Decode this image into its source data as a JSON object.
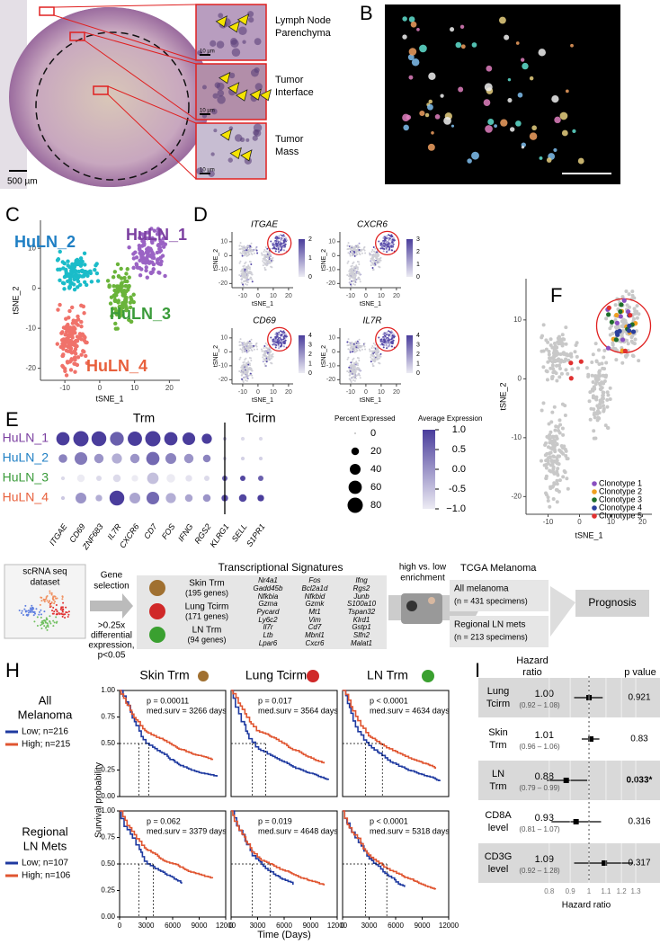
{
  "A": {
    "letter": "A",
    "insets": [
      [
        "Lymph Node",
        "Parenchyma"
      ],
      [
        "Tumor",
        "Interface"
      ],
      [
        "Tumor",
        "Mass"
      ]
    ],
    "scale_big": "500 µm",
    "scale_small": "10 µm"
  },
  "B": {
    "letter": "B"
  },
  "C": {
    "letter": "C",
    "clusters": [
      "HuLN_1",
      "HuLN_2",
      "HuLN_3",
      "HuLN_4"
    ],
    "label_colors": [
      "#7b3fa0",
      "#1f7fc4",
      "#3a9b3a",
      "#e8603c"
    ],
    "point_colors": [
      "#9a63c4",
      "#1bbcc9",
      "#6ab43a",
      "#f0726a"
    ],
    "xlabel": "tSNE_1",
    "ylabel": "tSNE_2",
    "xlim": [
      -17,
      23
    ],
    "ylim": [
      -23,
      17
    ],
    "xticks": [
      -10,
      0,
      10,
      20
    ],
    "yticks": [
      10,
      0,
      -10,
      -20
    ]
  },
  "D": {
    "letter": "D",
    "xlabel": "tSNE_1",
    "ylabel": "tSNE_2",
    "xlim": [
      -17,
      23
    ],
    "ylim": [
      -23,
      17
    ],
    "xticks": [
      -10,
      0,
      10,
      20
    ],
    "yticks": [
      10,
      0,
      -10,
      -20
    ],
    "genes": [
      {
        "name": "ITGAE",
        "scale": [
          2,
          1,
          0
        ]
      },
      {
        "name": "CXCR6",
        "scale": [
          3,
          2,
          1,
          0
        ]
      },
      {
        "name": "CD69",
        "scale": [
          4,
          3,
          2,
          1,
          0
        ]
      },
      {
        "name": "IL7R",
        "scale": [
          4,
          3,
          2,
          1,
          0
        ]
      }
    ]
  },
  "E": {
    "letter": "E",
    "rows": [
      "HuLN_1",
      "HuLN_2",
      "HuLN_3",
      "HuLN_4"
    ],
    "columns": [
      "ITGAE",
      "CD69",
      "ZNF683",
      "IL7R",
      "CXCR6",
      "CD7",
      "FOS",
      "IFNG",
      "RGS2",
      "KLRG1",
      "SELL",
      "S1PR1"
    ],
    "groups": [
      "Trm",
      "Tcirm"
    ],
    "percent": [
      [
        60,
        80,
        75,
        65,
        70,
        80,
        60,
        55,
        35,
        5,
        5,
        5
      ],
      [
        25,
        55,
        30,
        35,
        30,
        60,
        40,
        30,
        20,
        5,
        5,
        5
      ],
      [
        5,
        20,
        10,
        20,
        15,
        45,
        25,
        15,
        10,
        10,
        10,
        10
      ],
      [
        5,
        40,
        15,
        75,
        40,
        55,
        35,
        20,
        20,
        15,
        20,
        15
      ]
    ],
    "expression": [
      [
        1.2,
        1.2,
        1.3,
        0.6,
        1.3,
        1.1,
        1.2,
        1.1,
        1.0,
        -0.5,
        -0.8,
        -0.8
      ],
      [
        0.2,
        0.3,
        0.0,
        -0.3,
        0.0,
        0.5,
        0.2,
        0.0,
        0.2,
        -0.7,
        -0.7,
        -0.7
      ],
      [
        -0.8,
        -1,
        -0.8,
        -0.8,
        -1,
        -0.5,
        -1,
        -0.9,
        -0.8,
        0.6,
        0.9,
        0.6
      ],
      [
        -0.6,
        0.0,
        -0.3,
        1.3,
        -0.2,
        0.5,
        -0.3,
        -0.2,
        0.0,
        0.8,
        0.9,
        1.0
      ]
    ],
    "size_title": "Percent Expressed",
    "size_ticks": [
      0,
      20,
      40,
      60,
      80
    ],
    "color_title": "Average Expression",
    "color_ticks": [
      {
        "value": 1,
        "label": "1.0"
      },
      0.5,
      {
        "value": 0,
        "label": "0.0"
      },
      -0.5,
      {
        "value": -1,
        "label": "−1.0"
      }
    ],
    "color_low": "#ecebf3",
    "color_high": "#4a3d9c"
  },
  "F": {
    "letter": "F",
    "xlabel": "tSNE_1",
    "ylabel": "tSNE_2",
    "xlim": [
      -17,
      23
    ],
    "ylim": [
      -23,
      17
    ],
    "xticks": [
      -10,
      0,
      10,
      20
    ],
    "yticks": [
      10,
      0,
      -10,
      -20
    ],
    "clonotypes": [
      {
        "name": "Clonotype 1",
        "color": "#8a4fc0"
      },
      {
        "name": "Clonotype 2",
        "color": "#f0a020"
      },
      {
        "name": "Clonotype 3",
        "color": "#1d6e2a"
      },
      {
        "name": "Clonotype 4",
        "color": "#2a3f9c"
      },
      {
        "name": "Clonotype 5",
        "color": "#e03030"
      }
    ]
  },
  "G": {
    "letter": "G",
    "dataset": [
      "scRNA seq",
      "dataset"
    ],
    "selection": [
      "Gene",
      "selection"
    ],
    "criteria": [
      ">0.25x",
      "differential",
      "expression,",
      "p<0.05"
    ],
    "title": "Transcriptional Signatures",
    "signatures": [
      {
        "name": "Skin Trm",
        "count": "(195 genes)",
        "genes": [
          [
            "Nr4a1",
            "Gadd45b",
            "Nfkbia"
          ],
          [
            "Fos",
            "Bcl2a1d",
            "Nfkbid"
          ],
          [
            "Ifng",
            "Rgs2",
            "Junb"
          ]
        ]
      },
      {
        "name": "Lung Tcirm",
        "count": "(171 genes)",
        "genes": [
          [
            "Gzma",
            "Pycard",
            "Ly6c2"
          ],
          [
            "Gzmk",
            "Mt1",
            "Vim"
          ],
          [
            "S100a10",
            "Tspan32",
            "Klrd1"
          ]
        ]
      },
      {
        "name": "LN Trm",
        "count": "(94 genes)",
        "genes": [
          [
            "Il7r",
            "Ltb",
            "Lpar6"
          ],
          [
            "Cd7",
            "Mbnl1",
            "Cxcr6"
          ],
          [
            "Gstp1",
            "Slfn2",
            "Malat1"
          ]
        ]
      }
    ],
    "enrichment": [
      "high vs. low",
      "enrichment"
    ],
    "tcga": "TCGA Melanoma",
    "cohorts": [
      [
        "All melanoma",
        "(n = 431 specimens)"
      ],
      [
        "Regional LN mets",
        "(n = 213 specimens)"
      ]
    ],
    "outcome": "Prognosis"
  },
  "H": {
    "letter": "H",
    "cohorts": [
      {
        "name": [
          "All",
          "Melanoma"
        ],
        "low": "Low; n=216",
        "high": "High; n=215"
      },
      {
        "name": [
          "Regional",
          "LN Mets"
        ],
        "low": "Low; n=107",
        "high": "High; n=106"
      }
    ],
    "low_color": "#1f3aa0",
    "high_color": "#e05530",
    "titles": [
      "Skin Trm",
      "Lung Tcirm",
      "LN Trm"
    ],
    "stats": [
      [
        [
          "p =  0.00011",
          "med.surv = 3266 days"
        ],
        [
          "p =  0.017",
          "med.surv = 3564 days"
        ],
        [
          "p <  0.0001",
          "med.surv = 4634 days"
        ]
      ],
      [
        [
          "p =  0.062",
          "med.surv = 3379 days"
        ],
        [
          "p =  0.019",
          "med.surv = 4648 days"
        ],
        [
          "p <  0.0001",
          "med.surv = 5318 days"
        ]
      ]
    ],
    "ylabel": "Survival probability",
    "xlabel": "Time (Days)",
    "xlim": [
      0,
      12000
    ],
    "xticks": [
      0,
      3000,
      6000,
      9000,
      12000
    ],
    "ylim": [
      0,
      1
    ],
    "yticks": [
      {
        "value": 1,
        "label": "1.00"
      },
      {
        "value": 0.75,
        "label": "0.75"
      },
      {
        "value": 0.5,
        "label": "0.50"
      },
      {
        "value": 0.25,
        "label": "0.25"
      },
      {
        "value": 0,
        "label": "0.00"
      }
    ]
  },
  "I": {
    "letter": "I",
    "header": [
      "Hazard",
      "ratio"
    ],
    "pheader": "p value",
    "log": true,
    "xlim": [
      0.75,
      1.36
    ],
    "xticks": [
      0.8,
      0.9,
      1,
      1.1,
      1.2,
      1.3
    ],
    "xlabel": "Hazard ratio",
    "stripe_color": "#d9d9d9",
    "rows": [
      {
        "name": [
          "Lung",
          "Tcirm"
        ],
        "hr": "1.00",
        "ci": "(0.92 – 1.08)",
        "p": "0.921"
      },
      {
        "name": [
          "Skin",
          "Trm"
        ],
        "hr": "1.01",
        "ci": "(0.96 – 1.06)",
        "p": "0.83"
      },
      {
        "name": [
          "LN",
          "Trm"
        ],
        "hr": "0.88",
        "ci": "(0.79 – 0.99)",
        "p": "0.033*"
      },
      {
        "name": [
          "CD8A",
          "level"
        ],
        "hr": "0.93",
        "ci": "(0.81 – 1.07)",
        "p": "0.316"
      },
      {
        "name": [
          "CD3G",
          "level"
        ],
        "hr": "1.09",
        "ci": "(0.92 – 1.28)",
        "p": "0.317"
      }
    ]
  }
}
